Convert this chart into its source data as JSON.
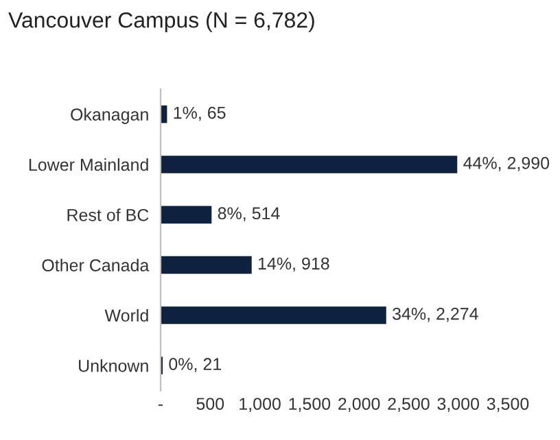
{
  "chart_data": {
    "type": "bar",
    "orientation": "horizontal",
    "title": "Vancouver Campus (N = 6,782)",
    "categories": [
      "Okanagan",
      "Lower Mainland",
      "Rest of BC",
      "Other Canada",
      "World",
      "Unknown"
    ],
    "values": [
      65,
      2990,
      514,
      918,
      2274,
      21
    ],
    "value_labels": [
      "1%, 65",
      "44%, 2,990",
      "8%, 514",
      "14%, 918",
      "34%, 2,274",
      "0%, 21"
    ],
    "color": "#0e2240",
    "xlim": [
      0,
      3500
    ],
    "xticks": [
      {
        "value": 0,
        "label": "-"
      },
      {
        "value": 500,
        "label": "500"
      },
      {
        "value": 1000,
        "label": "1,000"
      },
      {
        "value": 1500,
        "label": "1,500"
      },
      {
        "value": 2000,
        "label": "2,000"
      },
      {
        "value": 2500,
        "label": "2,500"
      },
      {
        "value": 3000,
        "label": "3,000"
      },
      {
        "value": 3500,
        "label": "3,500"
      }
    ],
    "grid": false
  }
}
